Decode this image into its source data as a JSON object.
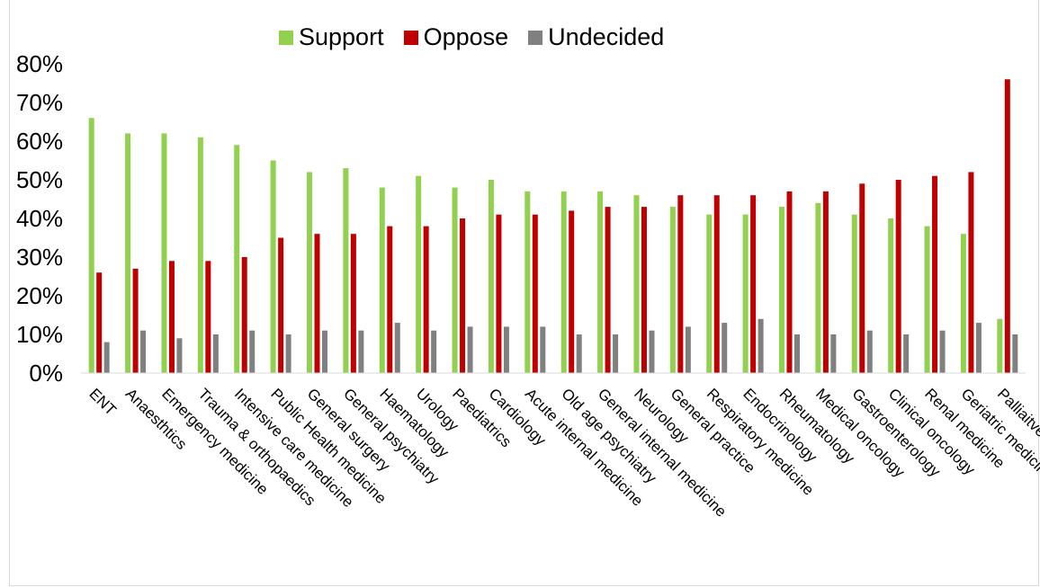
{
  "chart_data": {
    "type": "bar",
    "categories": [
      "ENT",
      "Anaesthtics",
      "Emergency medicine",
      "Trauma & orthopaedics",
      "Intensive care medicine",
      "Public Health medicine",
      "General surgery",
      "General psychiatry",
      "Haematology",
      "Urology",
      "Paediatrics",
      "Cardiology",
      "Acute internal medicine",
      "Old age psychiatry",
      "General internal medicine",
      "Neurology",
      "General practice",
      "Respiratory medicine",
      "Endocrinology",
      "Rheumatology",
      "Medical oncology",
      "Gastroenterology",
      "Clinical oncology",
      "Renal medicine",
      "Geriatric medicine",
      "Palliaitve medicine"
    ],
    "series": [
      {
        "name": "Support",
        "color": "#92d050",
        "values": [
          66,
          62,
          62,
          61,
          59,
          55,
          52,
          53,
          48,
          51,
          48,
          50,
          47,
          47,
          47,
          46,
          43,
          41,
          41,
          43,
          44,
          41,
          40,
          38,
          36,
          14
        ]
      },
      {
        "name": "Oppose",
        "color": "#c00000",
        "values": [
          26,
          27,
          29,
          29,
          30,
          35,
          36,
          36,
          38,
          38,
          40,
          41,
          41,
          42,
          43,
          43,
          46,
          46,
          46,
          47,
          47,
          49,
          50,
          51,
          52,
          76
        ]
      },
      {
        "name": "Undecided",
        "color": "#808080",
        "values": [
          8,
          11,
          9,
          10,
          11,
          10,
          11,
          11,
          13,
          11,
          12,
          12,
          12,
          10,
          10,
          11,
          12,
          13,
          14,
          10,
          10,
          11,
          10,
          11,
          13,
          10
        ]
      }
    ],
    "ylim": [
      0,
      80
    ],
    "yticks": [
      "0%",
      "10%",
      "20%",
      "30%",
      "40%",
      "50%",
      "60%",
      "70%",
      "80%"
    ],
    "legend_position": "top",
    "grid": false
  }
}
